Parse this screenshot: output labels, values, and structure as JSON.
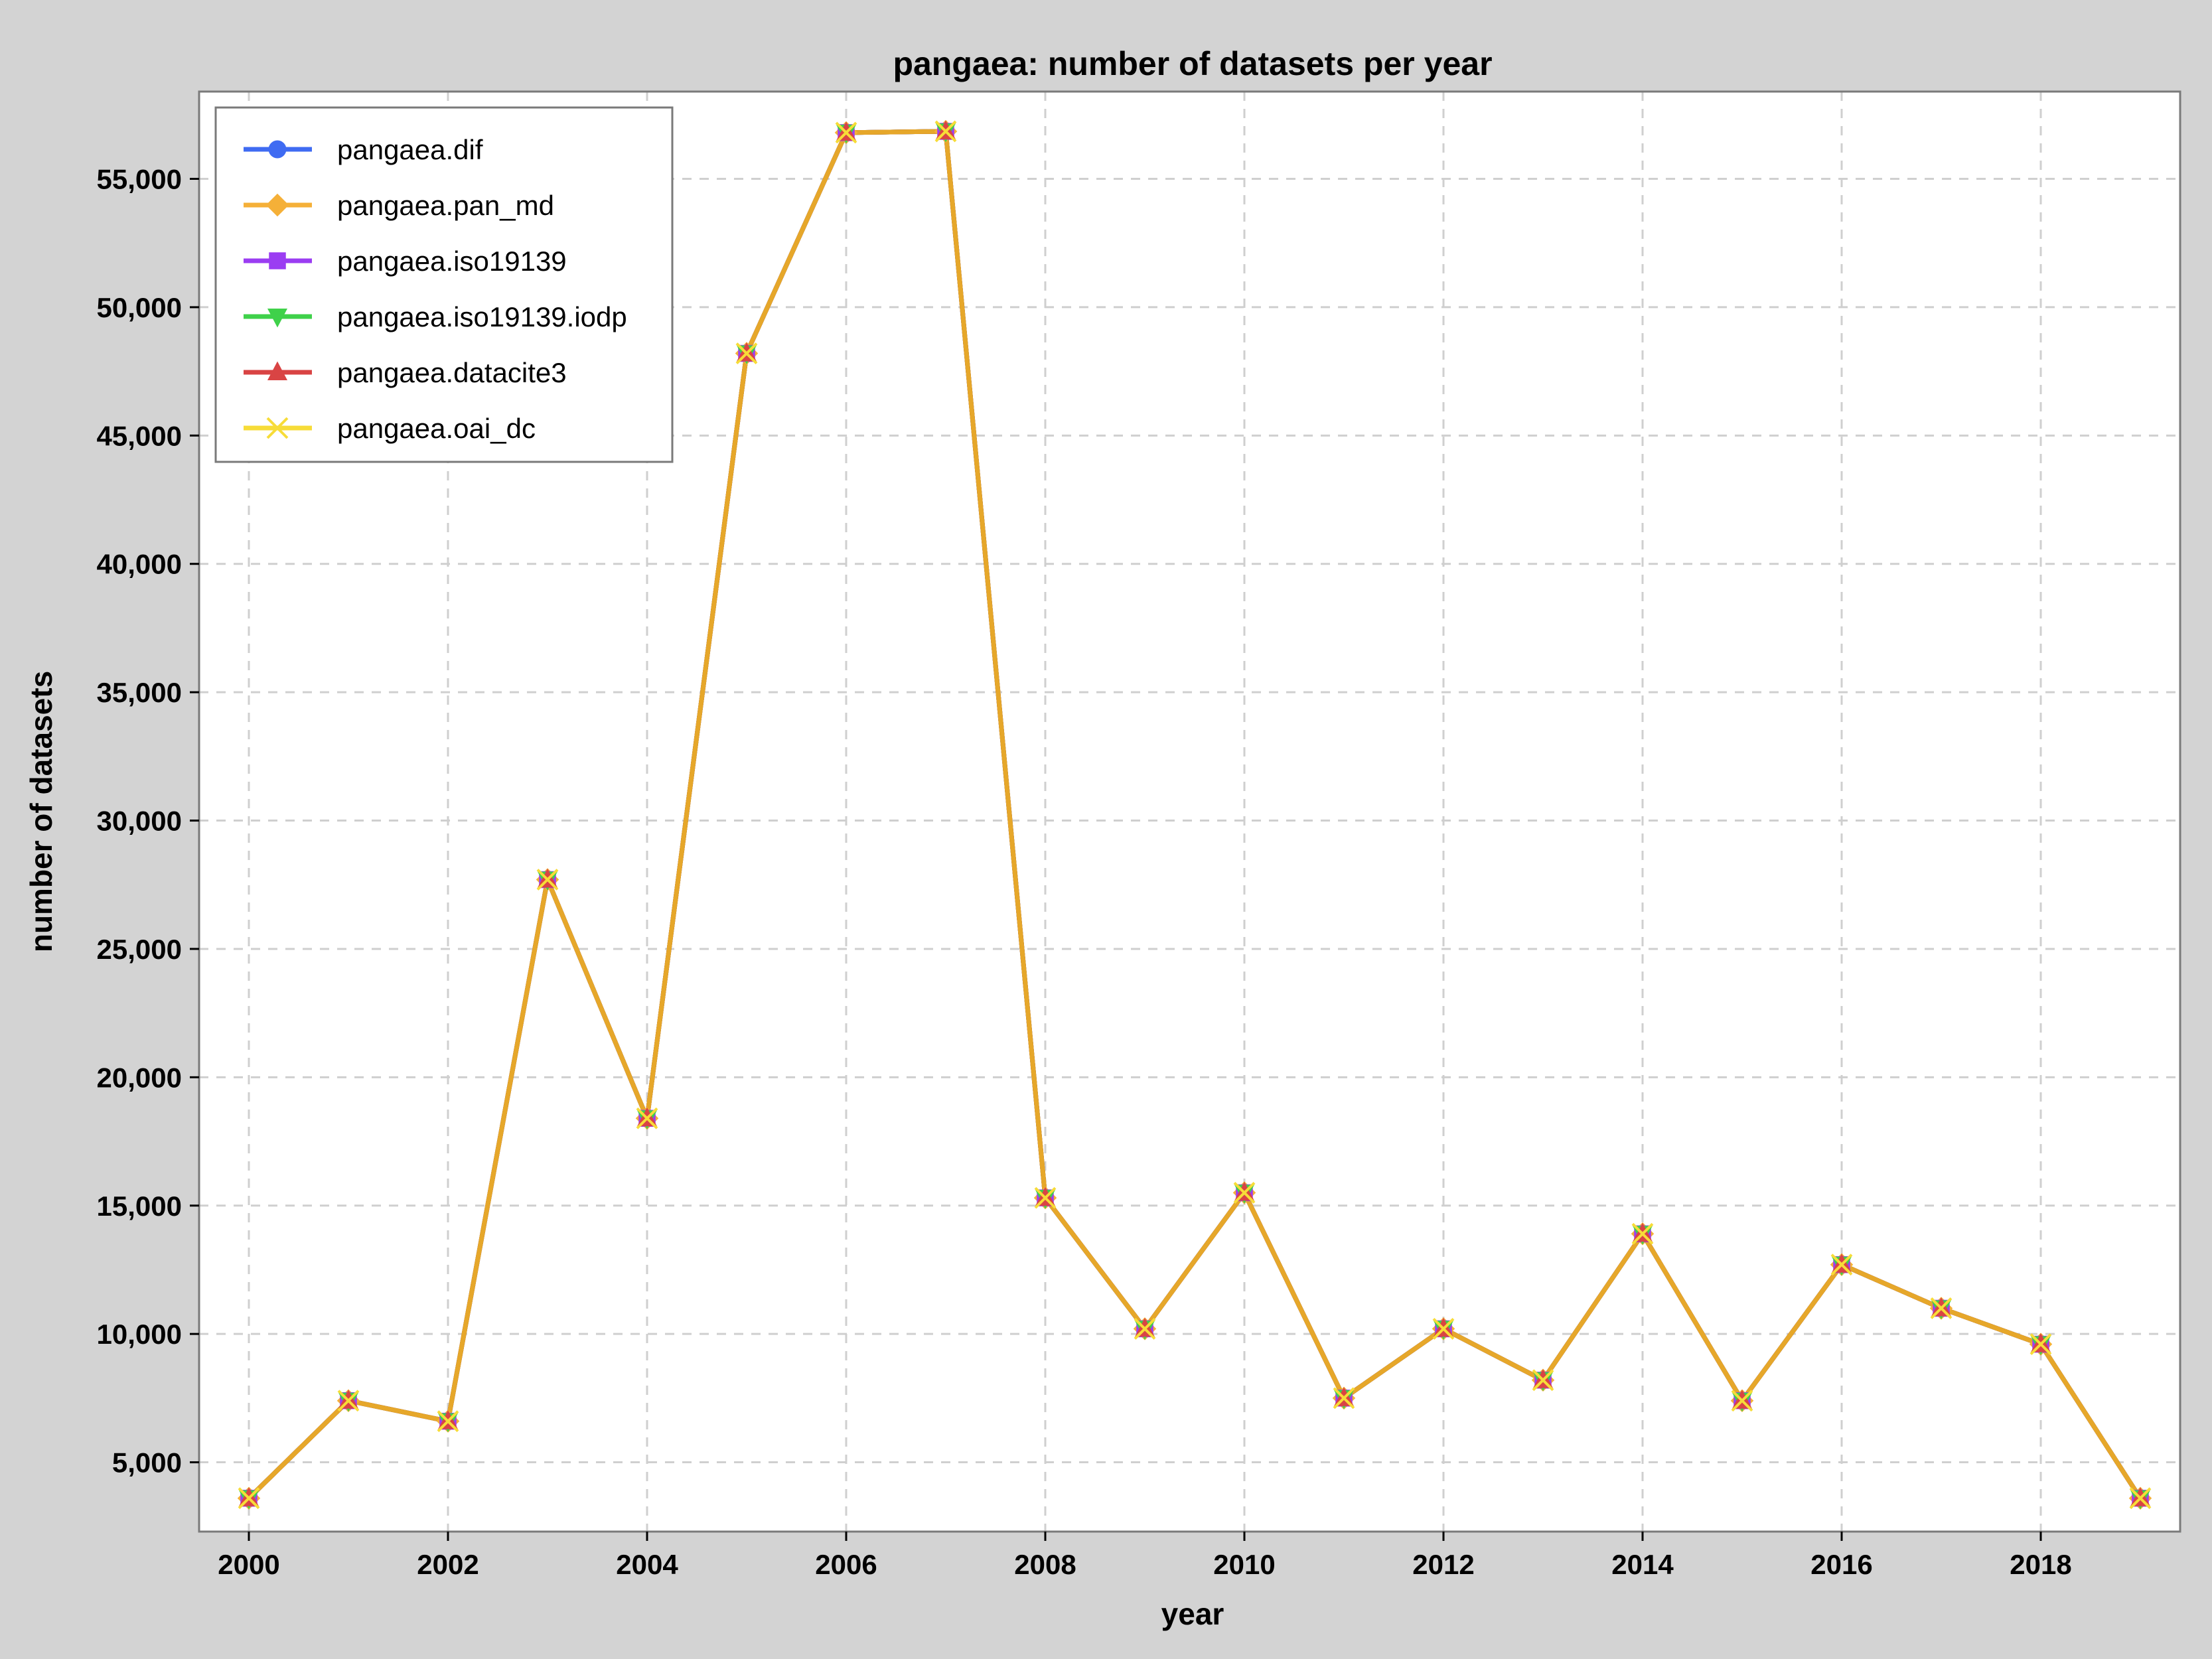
{
  "chart_data": {
    "type": "line",
    "title": "pangaea: number of datasets per year",
    "xlabel": "year",
    "ylabel": "number of datasets",
    "x": [
      2000,
      2001,
      2002,
      2003,
      2004,
      2005,
      2006,
      2007,
      2008,
      2009,
      2010,
      2011,
      2012,
      2013,
      2014,
      2015,
      2016,
      2017,
      2018,
      2019
    ],
    "xlim": [
      1999.5,
      2019.4
    ],
    "ylim": [
      2300,
      58400
    ],
    "xticks": [
      "2000",
      "2002",
      "2004",
      "2006",
      "2008",
      "2010",
      "2012",
      "2014",
      "2016",
      "2018"
    ],
    "yticks": [
      "5,000",
      "10,000",
      "15,000",
      "20,000",
      "25,000",
      "30,000",
      "35,000",
      "40,000",
      "45,000",
      "50,000",
      "55,000"
    ],
    "grid": true,
    "legend_position": "top-left",
    "series": [
      {
        "name": "pangaea.dif",
        "color": "#3f6bf2",
        "marker": "circle",
        "values": [
          3600,
          7400,
          6600,
          27700,
          18400,
          48200,
          56800,
          56850,
          15300,
          10200,
          15500,
          7500,
          10200,
          8200,
          13900,
          7400,
          12700,
          11000,
          9600,
          3600
        ]
      },
      {
        "name": "pangaea.pan_md",
        "color": "#f5b038",
        "marker": "diamond",
        "values": [
          3600,
          7400,
          6600,
          27700,
          18400,
          48200,
          56800,
          56850,
          15300,
          10200,
          15500,
          7500,
          10200,
          8200,
          13900,
          7400,
          12700,
          11000,
          9600,
          3600
        ]
      },
      {
        "name": "pangaea.iso19139",
        "color": "#9b3df2",
        "marker": "square",
        "values": [
          3600,
          7400,
          6600,
          27700,
          18400,
          48200,
          56800,
          56850,
          15300,
          10200,
          15500,
          7500,
          10200,
          8200,
          13900,
          7400,
          12700,
          11000,
          9600,
          3600
        ]
      },
      {
        "name": "pangaea.iso19139.iodp",
        "color": "#3fd14a",
        "marker": "triangle-down",
        "values": [
          3600,
          7400,
          6600,
          27700,
          18400,
          48200,
          56800,
          56850,
          15300,
          10200,
          15500,
          7500,
          10200,
          8200,
          13900,
          7400,
          12700,
          11000,
          9600,
          3600
        ]
      },
      {
        "name": "pangaea.datacite3",
        "color": "#d94444",
        "marker": "triangle-up",
        "values": [
          3600,
          7400,
          6600,
          27700,
          18400,
          48200,
          56800,
          56850,
          15300,
          10200,
          15500,
          7500,
          10200,
          8200,
          13900,
          7400,
          12700,
          11000,
          9600,
          3600
        ]
      },
      {
        "name": "pangaea.oai_dc",
        "color": "#f7dc38",
        "marker": "x",
        "values": [
          3600,
          7400,
          6600,
          27700,
          18400,
          48200,
          56800,
          56850,
          15300,
          10200,
          15500,
          7500,
          10200,
          8200,
          13900,
          7400,
          12700,
          11000,
          9600,
          3600
        ]
      }
    ],
    "line_color": "#e6a72a"
  }
}
